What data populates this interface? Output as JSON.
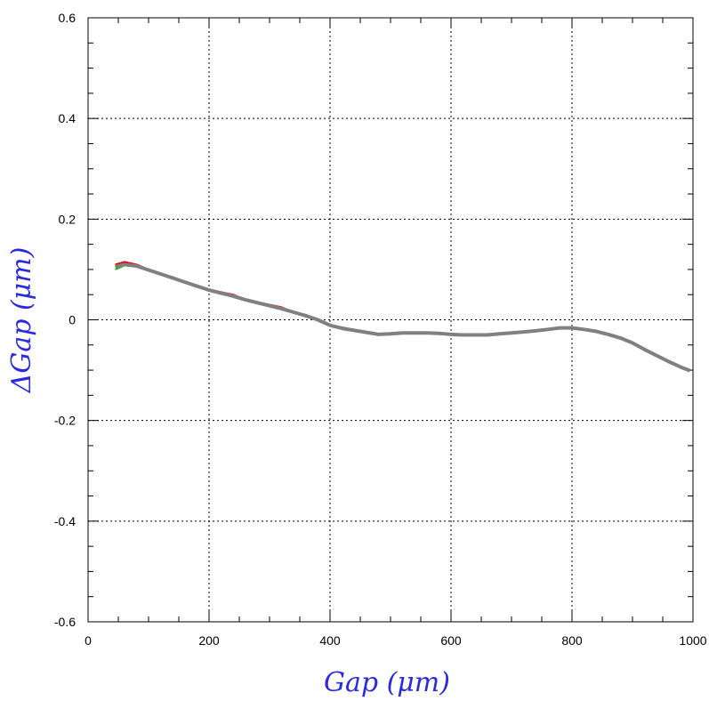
{
  "chart_data": {
    "type": "line",
    "title": "",
    "xlabel": "Gap  (μm)",
    "ylabel": "ΔGap  (μm)",
    "xlim": [
      0,
      1000
    ],
    "ylim": [
      -0.6,
      0.6
    ],
    "x_ticks": [
      0,
      200,
      400,
      600,
      800,
      1000
    ],
    "x_tick_labels": [
      "0",
      "200",
      "400",
      "600",
      "800",
      "1000"
    ],
    "y_ticks": [
      -0.6,
      -0.4,
      -0.2,
      0,
      0.2,
      0.4,
      0.6
    ],
    "y_tick_labels": [
      "-0.6",
      "-0.4",
      "-0.2",
      "0",
      "0.2",
      "0.4",
      "0.6"
    ],
    "grid": true,
    "x": [
      45,
      60,
      80,
      100,
      120,
      140,
      160,
      180,
      200,
      220,
      240,
      260,
      280,
      300,
      320,
      340,
      360,
      380,
      400,
      420,
      440,
      460,
      480,
      500,
      520,
      540,
      560,
      580,
      600,
      620,
      640,
      660,
      680,
      700,
      720,
      740,
      760,
      780,
      800,
      820,
      840,
      860,
      880,
      900,
      920,
      940,
      960,
      980,
      995
    ],
    "series": [
      {
        "color": "#ff0000",
        "values": [
          0.11,
          0.115,
          0.11,
          0.1,
          0.09,
          0.085,
          0.075,
          0.065,
          0.06,
          0.055,
          0.05,
          0.04,
          0.035,
          0.03,
          0.025,
          0.015,
          0.01,
          0.0,
          -0.01,
          -0.015,
          -0.02,
          -0.025,
          -0.028,
          -0.028,
          -0.026,
          -0.026,
          -0.026,
          -0.027,
          -0.028,
          -0.029,
          -0.03,
          -0.03,
          -0.028,
          -0.026,
          -0.024,
          -0.022,
          -0.018,
          -0.015,
          -0.015,
          -0.018,
          -0.022,
          -0.028,
          -0.035,
          -0.045,
          -0.058,
          -0.07,
          -0.082,
          -0.093,
          -0.1
        ]
      },
      {
        "color": "#00cc00",
        "values": [
          0.1,
          0.108,
          0.106,
          0.098,
          0.09,
          0.082,
          0.074,
          0.066,
          0.058,
          0.052,
          0.046,
          0.04,
          0.034,
          0.028,
          0.022,
          0.015,
          0.008,
          0.0,
          -0.012,
          -0.018,
          -0.022,
          -0.026,
          -0.03,
          -0.029,
          -0.027,
          -0.027,
          -0.027,
          -0.028,
          -0.03,
          -0.031,
          -0.031,
          -0.031,
          -0.029,
          -0.027,
          -0.025,
          -0.023,
          -0.02,
          -0.017,
          -0.017,
          -0.02,
          -0.024,
          -0.03,
          -0.037,
          -0.047,
          -0.06,
          -0.072,
          -0.084,
          -0.095,
          -0.102
        ]
      },
      {
        "color": "#0000ff",
        "values": [
          0.105,
          0.112,
          0.108,
          0.1,
          0.092,
          0.084,
          0.076,
          0.068,
          0.06,
          0.054,
          0.048,
          0.041,
          0.035,
          0.029,
          0.023,
          0.016,
          0.009,
          0.001,
          -0.011,
          -0.017,
          -0.021,
          -0.025,
          -0.029,
          -0.028,
          -0.026,
          -0.026,
          -0.026,
          -0.027,
          -0.029,
          -0.03,
          -0.03,
          -0.03,
          -0.028,
          -0.026,
          -0.024,
          -0.022,
          -0.019,
          -0.016,
          -0.016,
          -0.019,
          -0.023,
          -0.029,
          -0.036,
          -0.046,
          -0.059,
          -0.071,
          -0.083,
          -0.094,
          -0.101
        ]
      },
      {
        "color": "#808080",
        "values": [
          0.105,
          0.11,
          0.107,
          0.099,
          0.091,
          0.083,
          0.075,
          0.067,
          0.059,
          0.053,
          0.047,
          0.04,
          0.034,
          0.028,
          0.022,
          0.015,
          0.008,
          0.0,
          -0.011,
          -0.017,
          -0.021,
          -0.025,
          -0.029,
          -0.028,
          -0.026,
          -0.026,
          -0.026,
          -0.027,
          -0.029,
          -0.03,
          -0.03,
          -0.03,
          -0.028,
          -0.026,
          -0.024,
          -0.022,
          -0.019,
          -0.016,
          -0.016,
          -0.019,
          -0.023,
          -0.029,
          -0.036,
          -0.046,
          -0.059,
          -0.071,
          -0.083,
          -0.094,
          -0.101
        ]
      }
    ]
  }
}
